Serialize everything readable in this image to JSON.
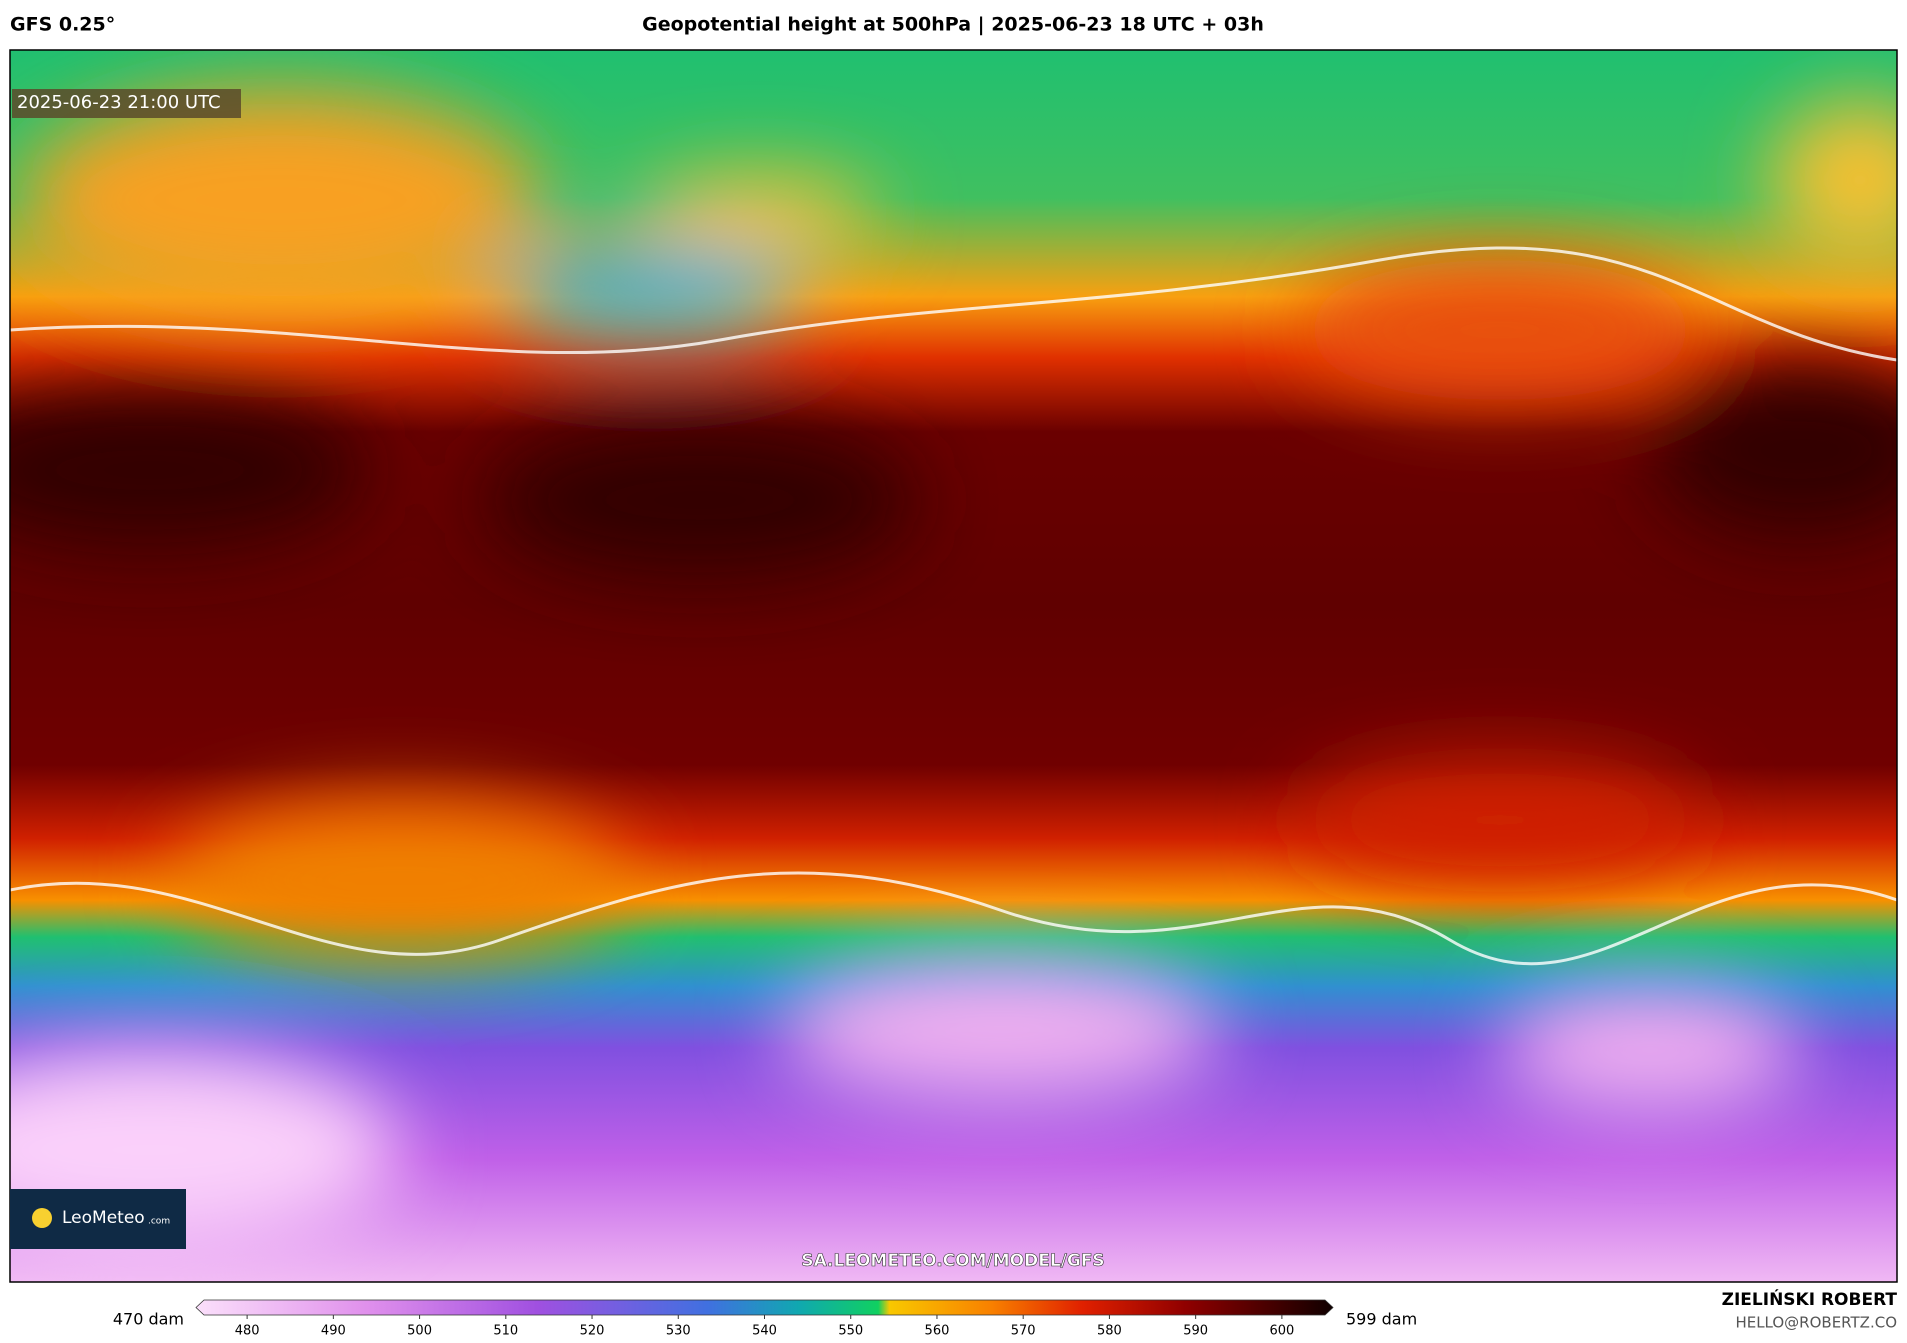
{
  "header": {
    "model": "GFS 0.25°",
    "title": "Geopotential height at 500hPa | 2025-06-23 18 UTC + 03h"
  },
  "map": {
    "valid_time": "2025-06-23 21:00 UTC",
    "logo": "LeoMeteo",
    "logo_suffix": ".com",
    "url": "SA.LEOMETEO.COM/MODEL/GFS"
  },
  "colorbar": {
    "min_label": "470 dam",
    "max_label": "599 dam",
    "xlim": [
      475,
      605
    ],
    "xticks": [
      480,
      490,
      500,
      510,
      520,
      530,
      540,
      550,
      560,
      570,
      580,
      590,
      600
    ]
  },
  "footer": {
    "author": "ZIELIŃSKI ROBERT",
    "email": "HELLO@ROBERTZ.CO"
  }
}
